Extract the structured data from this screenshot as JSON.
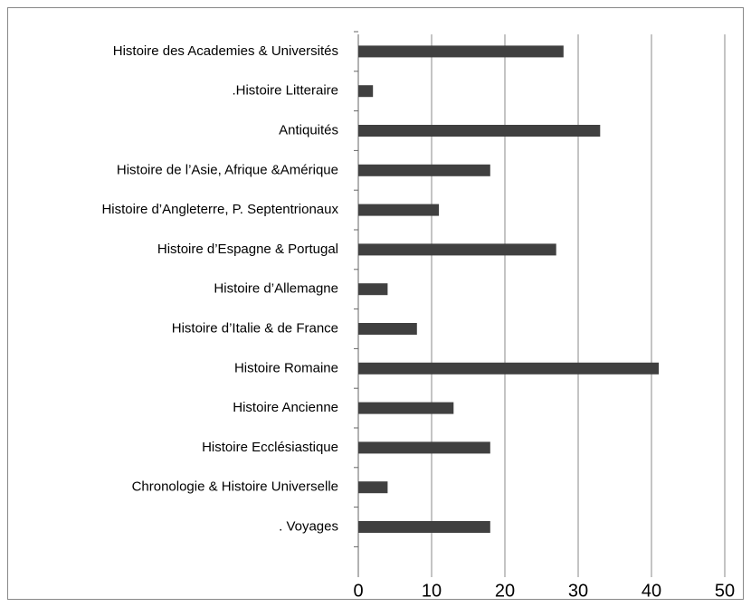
{
  "chart_data": {
    "type": "bar",
    "orientation": "horizontal",
    "categories": [
      "Histoire des Academies & Universités",
      ".Histoire Litteraire",
      "Antiquités",
      "Histoire de l’Asie, Afrique &Amérique",
      "Histoire d’Angleterre, P. Septentrionaux",
      "Histoire d’Espagne & Portugal",
      "Histoire d’Allemagne",
      "Histoire d’Italie & de France",
      "Histoire Romaine",
      "Histoire Ancienne",
      "Histoire Ecclésiastique",
      "Chronologie & Histoire Universelle",
      ". Voyages"
    ],
    "values": [
      28,
      2,
      33,
      18,
      11,
      27,
      4,
      8,
      41,
      13,
      18,
      4,
      18
    ],
    "color": "#404040",
    "xlim": [
      0,
      50
    ],
    "xticks": [
      0,
      10,
      20,
      30,
      40,
      50
    ],
    "grid": true
  }
}
